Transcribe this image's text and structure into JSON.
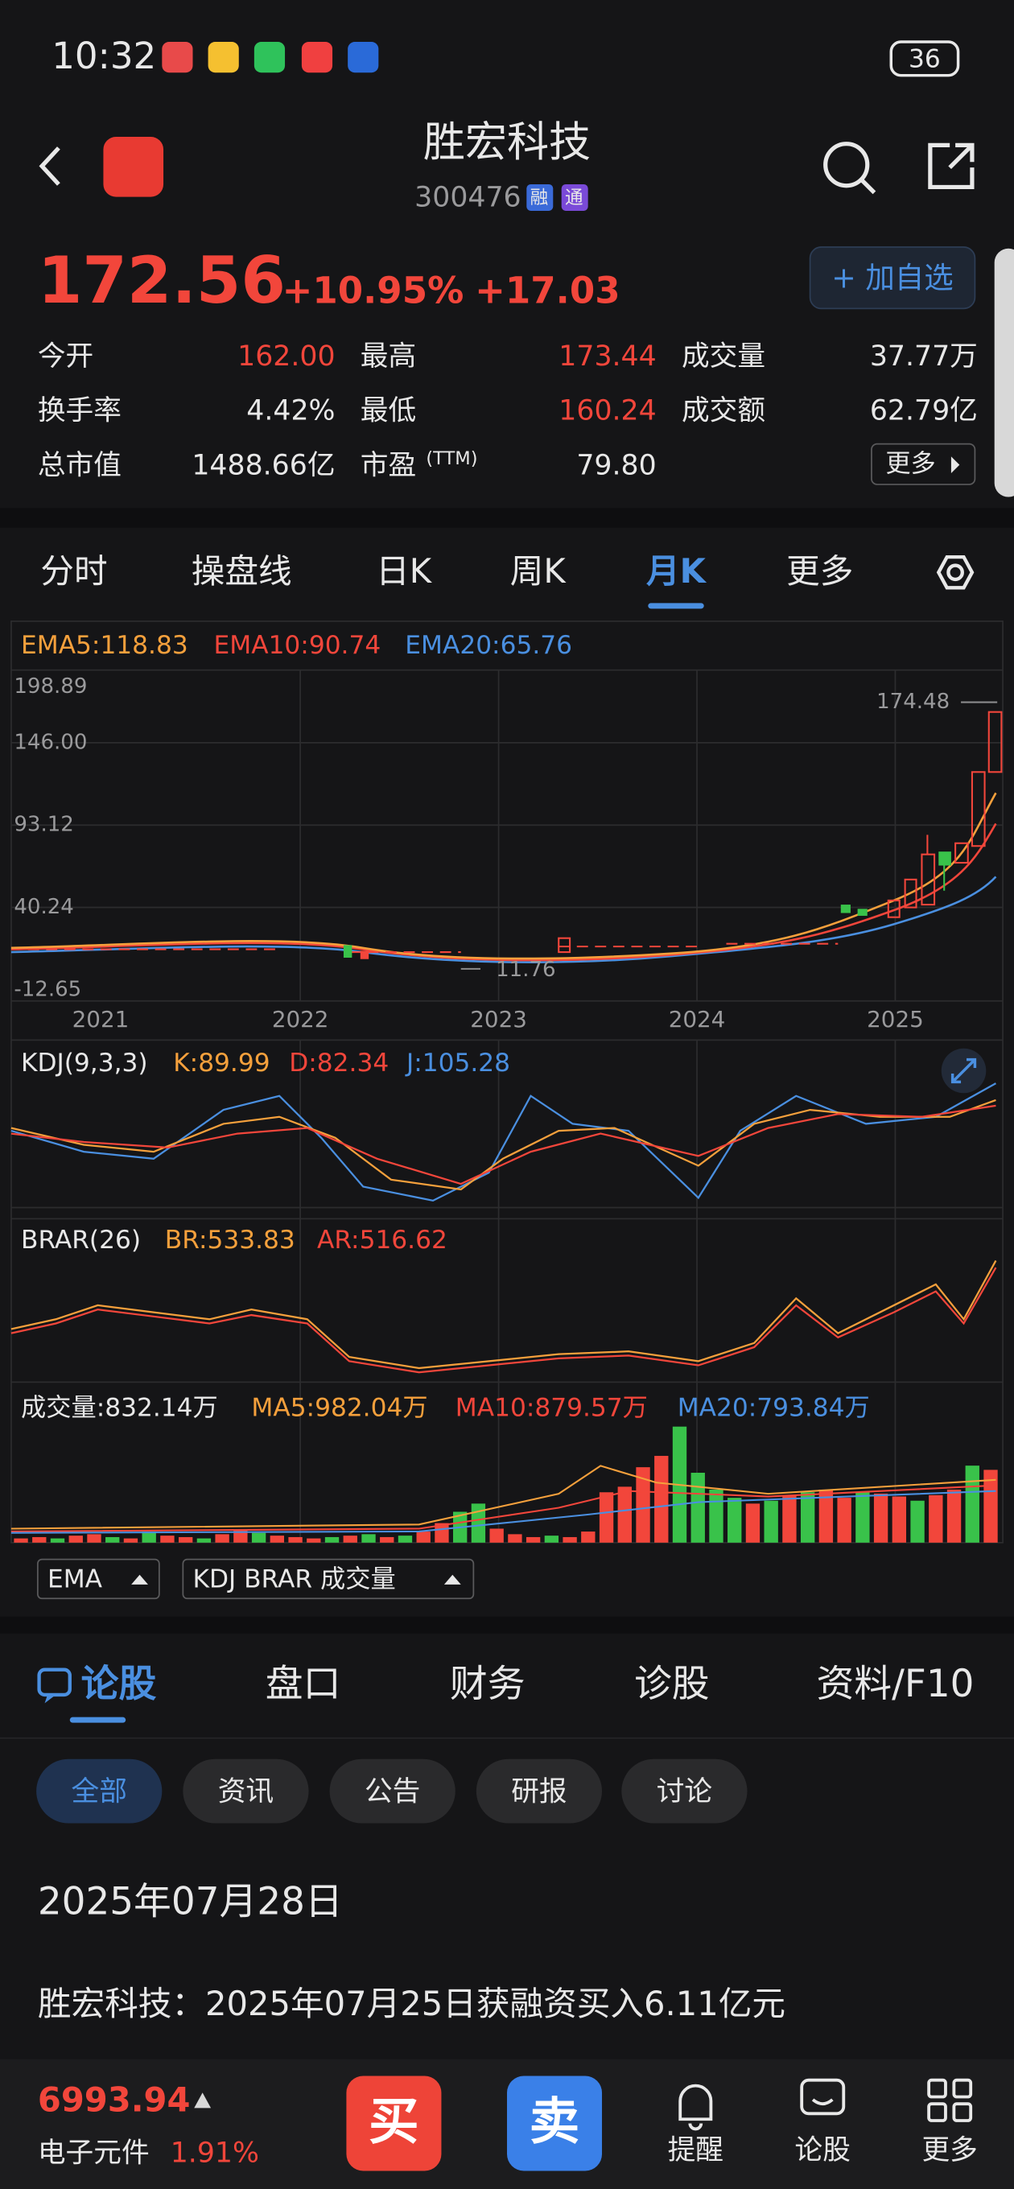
{
  "status": {
    "time": "10:32",
    "battery": "36"
  },
  "header": {
    "title": "胜宏科技",
    "code": "300476",
    "badges": [
      "融",
      "通"
    ]
  },
  "quote": {
    "price": "172.56",
    "change_pct": "+10.95%",
    "change": "+17.03",
    "watch_button": "+ 加自选",
    "more": "更多",
    "stats": [
      {
        "label": "今开",
        "value": "162.00"
      },
      {
        "label": "最高",
        "value": "173.44"
      },
      {
        "label": "成交量",
        "value": "37.77万"
      },
      {
        "label": "换手率",
        "value": "4.42%"
      },
      {
        "label": "最低",
        "value": "160.24"
      },
      {
        "label": "成交额",
        "value": "62.79亿"
      },
      {
        "label": "总市值",
        "value": "1488.66亿"
      },
      {
        "label": "市盈",
        "label_sup": "(TTM)",
        "value": "79.80"
      }
    ]
  },
  "chart_tabs": [
    "分时",
    "操盘线",
    "日K",
    "周K",
    "月K",
    "更多"
  ],
  "kline": {
    "ema_labels": [
      "EMA5:118.83",
      "EMA10:90.74",
      "EMA20:65.76"
    ],
    "y_labels": [
      "198.89",
      "146.00",
      "93.12",
      "40.24",
      "-12.65"
    ],
    "x_labels": [
      "2021",
      "2022",
      "2023",
      "2024",
      "2025"
    ],
    "high_label": "174.48",
    "low_label": "11.76"
  },
  "kdj": {
    "labels": [
      "KDJ(9,3,3)",
      "K:89.99",
      "D:82.34",
      "J:105.28"
    ]
  },
  "brar": {
    "labels": [
      "BRAR(26)",
      "BR:533.83",
      "AR:516.62"
    ]
  },
  "volume": {
    "labels": [
      "成交量:832.14万",
      "MA5:982.04万",
      "MA10:879.57万",
      "MA20:793.84万"
    ],
    "ylim": [
      0,
      4500
    ],
    "up_values": [
      160,
      210,
      null,
      265,
      320,
      null,
      160,
      null,
      265,
      210,
      null,
      320,
      480,
      null,
      265,
      210,
      160,
      null,
      265,
      null,
      210,
      null,
      420,
      740,
      null,
      null,
      530,
      320,
      210,
      null,
      210,
      420,
      1910,
      2120,
      2860,
      3290,
      null,
      null,
      null,
      null,
      1480,
      null,
      1800,
      null,
      2010,
      1700,
      null,
      1860,
      1750,
      null,
      1800,
      2010,
      null,
      2760
    ],
    "down_values": [
      null,
      null,
      160,
      null,
      null,
      210,
      null,
      420,
      null,
      null,
      160,
      null,
      null,
      370,
      null,
      null,
      null,
      210,
      null,
      320,
      null,
      265,
      null,
      null,
      1170,
      1480,
      null,
      null,
      null,
      265,
      null,
      null,
      null,
      null,
      null,
      null,
      4400,
      2650,
      2010,
      1700,
      null,
      1590,
      null,
      1910,
      null,
      null,
      1910,
      null,
      null,
      1590,
      null,
      null,
      2920,
      null
    ]
  },
  "indicator_buttons": [
    "EMA",
    "KDJ BRAR 成交量"
  ],
  "section_tabs": [
    "论股",
    "盘口",
    "财务",
    "诊股",
    "资料/F10"
  ],
  "filters": [
    "全部",
    "资讯",
    "公告",
    "研报",
    "讨论"
  ],
  "news": {
    "date": "2025年07月28日",
    "headline": "胜宏科技：2025年07月25日获融资买入6.11亿元"
  },
  "bottom_bar": {
    "index_value": "6993.94",
    "index_name": "电子元件",
    "index_change": "1.91%",
    "buttons": [
      "买",
      "卖",
      "提醒",
      "论股",
      "更多"
    ]
  }
}
